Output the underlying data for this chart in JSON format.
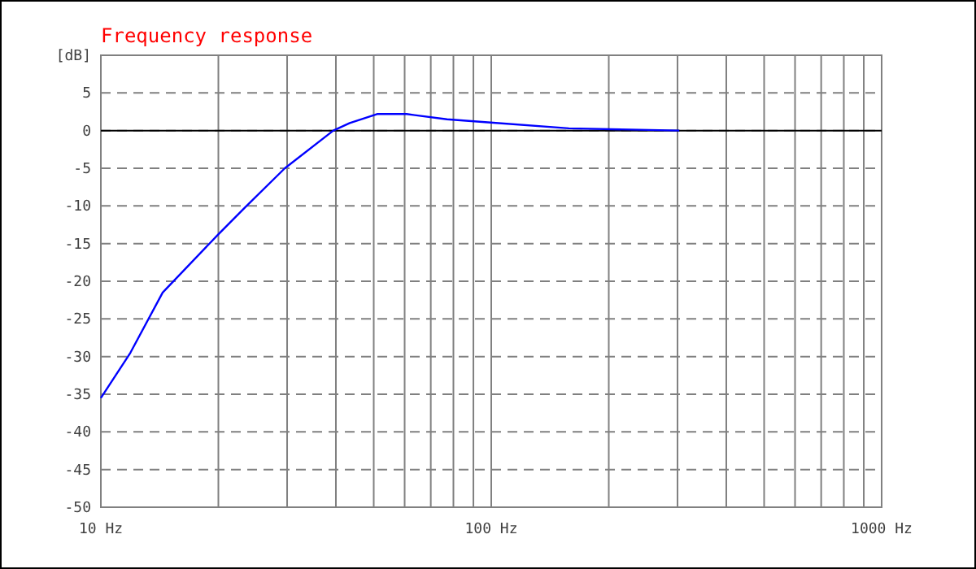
{
  "chart_data": {
    "type": "line",
    "title": "Frequency response",
    "ylabel": "[dB]",
    "log": "x",
    "xlim": [
      10,
      1000
    ],
    "ylim": [
      -50,
      10
    ],
    "xticks": [
      {
        "value": 10,
        "label": "10 Hz"
      },
      {
        "value": 20,
        "label": null
      },
      {
        "value": 30,
        "label": null
      },
      {
        "value": 40,
        "label": null
      },
      {
        "value": 50,
        "label": null
      },
      {
        "value": 60,
        "label": null
      },
      {
        "value": 70,
        "label": null
      },
      {
        "value": 80,
        "label": null
      },
      {
        "value": 90,
        "label": null
      },
      {
        "value": 100,
        "label": "100 Hz"
      },
      {
        "value": 200,
        "label": null
      },
      {
        "value": 300,
        "label": null
      },
      {
        "value": 400,
        "label": null
      },
      {
        "value": 500,
        "label": null
      },
      {
        "value": 600,
        "label": null
      },
      {
        "value": 700,
        "label": null
      },
      {
        "value": 800,
        "label": null
      },
      {
        "value": 900,
        "label": null
      },
      {
        "value": 1000,
        "label": "1000 Hz"
      }
    ],
    "yticks": [
      -50,
      -45,
      -40,
      -35,
      -30,
      -25,
      -20,
      -15,
      -10,
      -5,
      0,
      5
    ],
    "grid": true,
    "marker": "none",
    "line_style": "solid",
    "ref_lines": [
      {
        "axis": "y",
        "value": 0,
        "color": "#000000"
      }
    ],
    "series": [
      {
        "color": "#0000ff",
        "x": [
          10,
          11.9,
          14.4,
          19.8,
          23.3,
          29.6,
          39.4,
          43.4,
          51,
          60.7,
          77,
          98,
          158,
          303
        ],
        "values": [
          -35.5,
          -29.5,
          -21.5,
          -14,
          -10.3,
          -5,
          0,
          1,
          2.2,
          2.2,
          1.5,
          1.1,
          0.3,
          0
        ]
      }
    ]
  }
}
